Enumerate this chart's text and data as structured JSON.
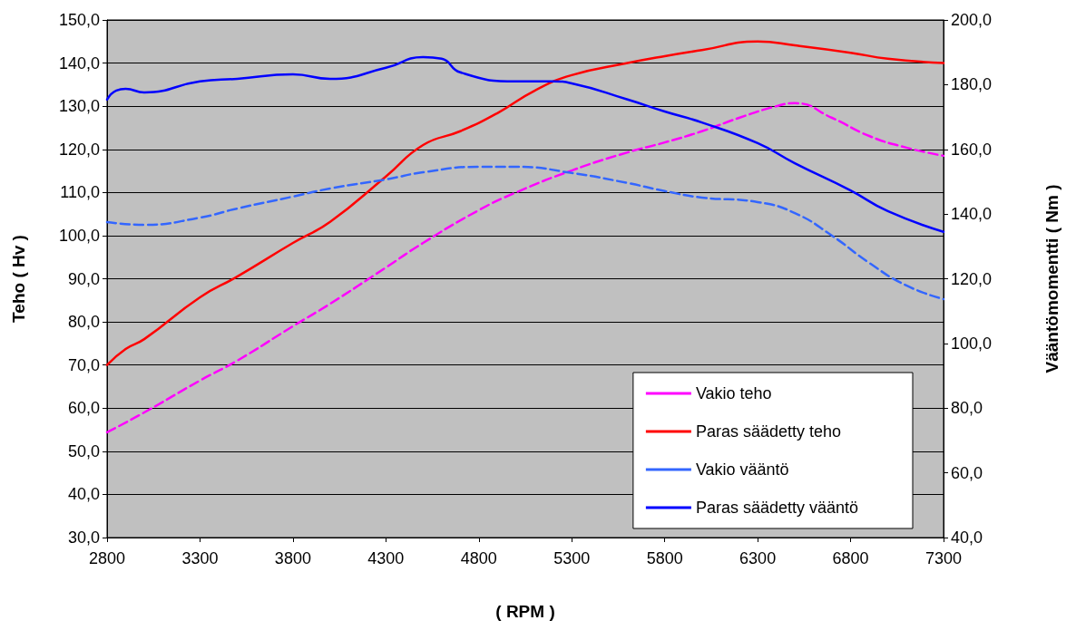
{
  "chart_data": {
    "type": "line",
    "xlabel": "( RPM )",
    "ylabel": "Teho ( Hv )",
    "y2label": "Vääntömomentti ( Nm )",
    "xlim": [
      2800,
      7300
    ],
    "xticks": [
      2800,
      3300,
      3800,
      4300,
      4800,
      5300,
      5800,
      6300,
      6800,
      7300
    ],
    "ylim": [
      30,
      150
    ],
    "yticks": [
      {
        "value": 30,
        "label": "30,0"
      },
      {
        "value": 40,
        "label": "40,0"
      },
      {
        "value": 50,
        "label": "50,0"
      },
      {
        "value": 60,
        "label": "60,0"
      },
      {
        "value": 70,
        "label": "70,0"
      },
      {
        "value": 80,
        "label": "80,0"
      },
      {
        "value": 90,
        "label": "90,0"
      },
      {
        "value": 100,
        "label": "100,0"
      },
      {
        "value": 110,
        "label": "110,0"
      },
      {
        "value": 120,
        "label": "120,0"
      },
      {
        "value": 130,
        "label": "130,0"
      },
      {
        "value": 140,
        "label": "140,0"
      },
      {
        "value": 150,
        "label": "150,0"
      }
    ],
    "y2lim": [
      40,
      200
    ],
    "y2ticks": [
      {
        "value": 40,
        "label": "40,0"
      },
      {
        "value": 60,
        "label": "60,0"
      },
      {
        "value": 80,
        "label": "80,0"
      },
      {
        "value": 100,
        "label": "100,0"
      },
      {
        "value": 120,
        "label": "120,0"
      },
      {
        "value": 140,
        "label": "140,0"
      },
      {
        "value": 160,
        "label": "160,0"
      },
      {
        "value": 180,
        "label": "180,0"
      },
      {
        "value": 200,
        "label": "200,0"
      }
    ],
    "grid": "y",
    "legend": "bottom right",
    "marker": "none",
    "series": [
      {
        "name": "Vakio teho",
        "color": "#ff00ff",
        "line_style": "dashed",
        "x": [
          2800,
          3000,
          3300,
          3500,
          3800,
          4000,
          4300,
          4500,
          4800,
          5000,
          5300,
          5600,
          5800,
          6000,
          6200,
          6400,
          6500,
          6700,
          6900,
          7100,
          7300
        ],
        "values": [
          54.4,
          59,
          66.4,
          71,
          79,
          84.2,
          92.6,
          98.3,
          105.9,
          110,
          115.1,
          119.3,
          121.6,
          124.2,
          127.3,
          130,
          130.7,
          127.3,
          123.1,
          120.4,
          118.5
        ]
      },
      {
        "name": "Paras säädetty teho",
        "color": "#ff0000",
        "line_style": "solid",
        "x": [
          2800,
          2900,
          3000,
          3300,
          3500,
          3800,
          4000,
          4300,
          4500,
          4700,
          4900,
          5100,
          5300,
          5600,
          5800,
          6000,
          6300,
          6500,
          6800,
          7000,
          7300
        ],
        "values": [
          70,
          73.7,
          76,
          85.7,
          90.5,
          98.3,
          103.2,
          113.7,
          121,
          124.2,
          128.4,
          133.6,
          137.2,
          140,
          141.6,
          143,
          145,
          144.1,
          142.4,
          141,
          140
        ]
      },
      {
        "name": "Vakio vääntö",
        "color": "#3366ff",
        "line_style": "dashed",
        "axis": "y2",
        "x": [
          2800,
          3000,
          3300,
          3500,
          3800,
          4000,
          4300,
          4500,
          4800,
          5000,
          5300,
          5600,
          5800,
          6000,
          6300,
          6500,
          6700,
          6900,
          7100,
          7300
        ],
        "values": [
          137.5,
          136.7,
          138.9,
          141.7,
          145.4,
          147.9,
          150.7,
          152.9,
          154.6,
          154.6,
          152.7,
          149.6,
          147.1,
          145.1,
          143.7,
          140.3,
          133.3,
          124.9,
          117.9,
          113.7
        ]
      },
      {
        "name": "Paras säädetty vääntö",
        "color": "#0000ff",
        "line_style": "solid",
        "axis": "y2",
        "x": [
          2800,
          2850,
          2900,
          3000,
          3300,
          3500,
          3800,
          4000,
          4300,
          4500,
          4600,
          4700,
          5000,
          5200,
          5300,
          5600,
          5800,
          6000,
          6300,
          6500,
          6800,
          7000,
          7300
        ],
        "values": [
          175.4,
          178.2,
          178.7,
          177.6,
          181,
          181.8,
          183.2,
          181.8,
          185.2,
          188.5,
          188,
          183.8,
          181,
          181,
          180.4,
          175.4,
          171.7,
          168.3,
          161.9,
          155.7,
          147.3,
          140.9,
          134.5
        ]
      }
    ]
  }
}
